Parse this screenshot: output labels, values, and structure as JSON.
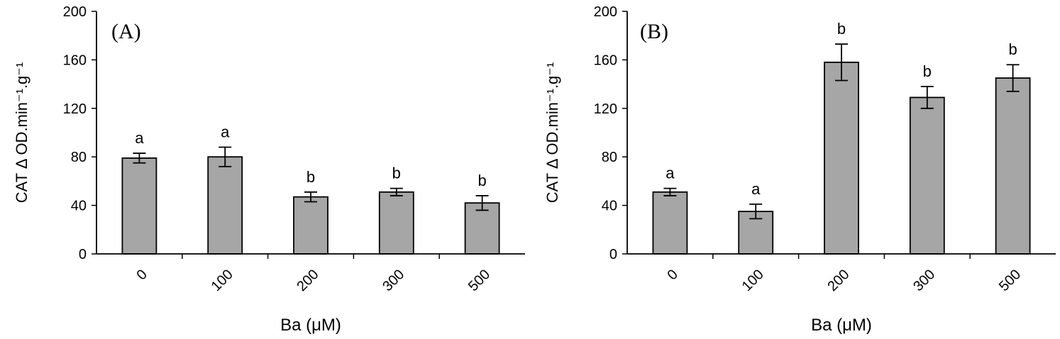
{
  "chart_data": [
    {
      "type": "bar",
      "panel_label": "(A)",
      "categories": [
        "0",
        "100",
        "200",
        "300",
        "500"
      ],
      "values": [
        79,
        80,
        47,
        51,
        42
      ],
      "errors": [
        4,
        8,
        4,
        3,
        6
      ],
      "significance": [
        "a",
        "a",
        "b",
        "b",
        "b"
      ],
      "ylabel": "CAT Δ OD.min⁻¹.g⁻¹",
      "xlabel": "Ba (μM)",
      "ylim": [
        0,
        200
      ],
      "yticks": [
        "0",
        "40",
        "80",
        "120",
        "160",
        "200"
      ],
      "bar_color": "#a6a6a6",
      "grid": false
    },
    {
      "type": "bar",
      "panel_label": "(B)",
      "categories": [
        "0",
        "100",
        "200",
        "300",
        "500"
      ],
      "values": [
        51,
        35,
        158,
        129,
        145
      ],
      "errors": [
        3,
        6,
        15,
        9,
        11
      ],
      "significance": [
        "a",
        "a",
        "b",
        "b",
        "b"
      ],
      "ylabel": "CAT Δ OD.min⁻¹.g⁻¹",
      "xlabel": "Ba (μM)",
      "ylim": [
        0,
        200
      ],
      "yticks": [
        "0",
        "40",
        "80",
        "120",
        "160",
        "200"
      ],
      "bar_color": "#a6a6a6",
      "grid": false
    }
  ]
}
